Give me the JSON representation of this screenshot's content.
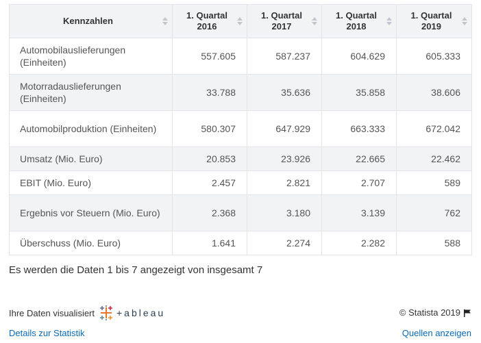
{
  "table": {
    "headers": [
      {
        "line1": "Kennzahlen",
        "line2": ""
      },
      {
        "line1": "1. Quartal",
        "line2": "2016"
      },
      {
        "line1": "1. Quartal",
        "line2": "2017"
      },
      {
        "line1": "1. Quartal",
        "line2": "2018"
      },
      {
        "line1": "1. Quartal",
        "line2": "2019"
      }
    ],
    "rows": [
      {
        "label": "Automobilauslieferungen (Einheiten)",
        "values": [
          "557.605",
          "587.237",
          "604.629",
          "605.333"
        ]
      },
      {
        "label": "Motorradauslieferungen (Einheiten)",
        "values": [
          "33.788",
          "35.636",
          "35.858",
          "38.606"
        ]
      },
      {
        "label": "Automobilproduktion (Einheiten)",
        "values": [
          "580.307",
          "647.929",
          "663.333",
          "672.042"
        ]
      },
      {
        "label": "Umsatz (Mio. Euro)",
        "values": [
          "20.853",
          "23.926",
          "22.665",
          "22.462"
        ]
      },
      {
        "label": "EBIT (Mio. Euro)",
        "values": [
          "2.457",
          "2.821",
          "2.707",
          "589"
        ]
      },
      {
        "label": "Ergebnis vor Steuern (Mio. Euro)",
        "values": [
          "2.368",
          "3.180",
          "3.139",
          "762"
        ]
      },
      {
        "label": "Überschuss (Mio. Euro)",
        "values": [
          "1.641",
          "2.274",
          "2.282",
          "588"
        ]
      }
    ]
  },
  "summary_text": "Es werden die Daten 1 bis 7 angezeigt von insgesamt 7",
  "footer": {
    "viz_label": "Ihre Daten visualisiert",
    "tableau_text": "+ableau",
    "copyright": "© Statista 2019",
    "details_link": "Details zur Statistik",
    "sources_link": "Quellen anzeigen"
  },
  "colors": {
    "header_bg": "#f2f3f5",
    "stripe_bg": "#f2f3f5",
    "link": "#0a6ab7"
  }
}
